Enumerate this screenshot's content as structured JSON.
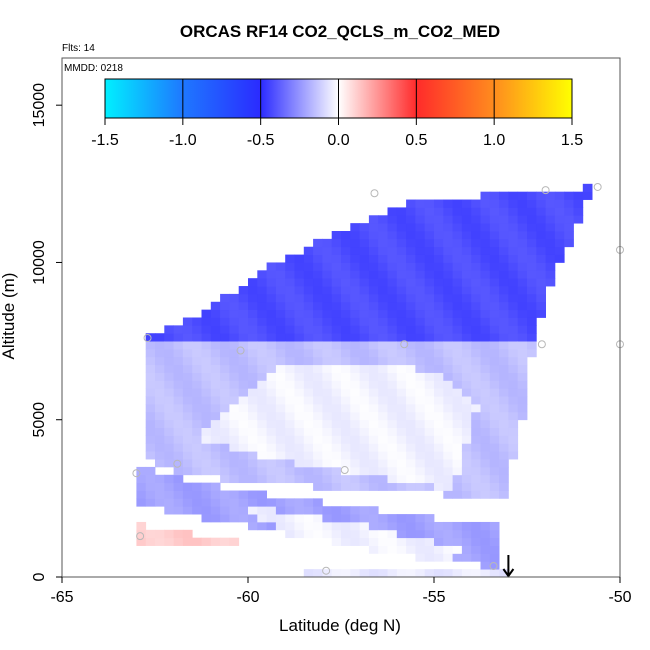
{
  "chart_data": {
    "type": "heatmap",
    "title": "ORCAS RF14 CO2_QCLS_m_CO2_MED",
    "xlabel": "Latitude (deg N)",
    "ylabel": "Altitude (m)",
    "xlim": [
      -65,
      -50
    ],
    "ylim": [
      0,
      16500
    ],
    "x_ticks": [
      {
        "value": -65,
        "label": "-65"
      },
      {
        "value": -60,
        "label": "-60"
      },
      {
        "value": -55,
        "label": "-55"
      },
      {
        "value": -50,
        "label": "-50"
      }
    ],
    "y_ticks": [
      {
        "value": 0,
        "label": "0"
      },
      {
        "value": 5000,
        "label": "5000"
      },
      {
        "value": 10000,
        "label": "10000"
      },
      {
        "value": 15000,
        "label": "15000"
      }
    ],
    "flights_note": "Flts: 14",
    "date_note": "MMDD: 0218",
    "colorbar": {
      "range": [
        -1.5,
        1.5
      ],
      "ticks": [
        {
          "value": -1.5,
          "label": "-1.5"
        },
        {
          "value": -1.0,
          "label": "-1.0"
        },
        {
          "value": -0.5,
          "label": "-0.5"
        },
        {
          "value": 0.0,
          "label": "0.0"
        },
        {
          "value": 0.5,
          "label": "0.5"
        },
        {
          "value": 1.0,
          "label": "1.0"
        },
        {
          "value": 1.5,
          "label": "1.5"
        }
      ],
      "colors": [
        [
          -1.5,
          "#00f0ff"
        ],
        [
          -1.0,
          "#1e78ff"
        ],
        [
          -0.5,
          "#2b2bff"
        ],
        [
          0.0,
          "#ffffff"
        ],
        [
          0.5,
          "#ff2b2b"
        ],
        [
          1.0,
          "#ff8c1e"
        ],
        [
          1.5,
          "#ffff00"
        ]
      ]
    },
    "regions": [
      {
        "name": "upper-layer",
        "value": -0.42,
        "polygon": [
          [
            -62.8,
            7600
          ],
          [
            -61.5,
            8200
          ],
          [
            -59.5,
            9800
          ],
          [
            -57.5,
            11000
          ],
          [
            -55.6,
            11900
          ],
          [
            -52.2,
            12300
          ],
          [
            -50.7,
            12400
          ],
          [
            -51.8,
            9500
          ],
          [
            -52.3,
            7500
          ],
          [
            -62.8,
            7500
          ]
        ]
      },
      {
        "name": "mid-layer",
        "value": -0.15,
        "polygon": [
          [
            -62.8,
            7500
          ],
          [
            -52.3,
            7500
          ],
          [
            -52.6,
            5000
          ],
          [
            -53.1,
            2500
          ],
          [
            -60,
            3000
          ],
          [
            -62.6,
            3500
          ],
          [
            -62.8,
            5500
          ]
        ]
      },
      {
        "name": "mid-core",
        "value": -0.03,
        "polygon": [
          [
            -61.5,
            4500
          ],
          [
            -59,
            6800
          ],
          [
            -55,
            6600
          ],
          [
            -53.8,
            5500
          ],
          [
            -54.5,
            2800
          ],
          [
            -59.5,
            3800
          ]
        ]
      },
      {
        "name": "lower-band",
        "value": -0.22,
        "polygon": [
          [
            -63,
            3500
          ],
          [
            -60.5,
            2800
          ],
          [
            -57.5,
            2300
          ],
          [
            -53.2,
            1600
          ],
          [
            -53.2,
            300
          ],
          [
            -56,
            700
          ],
          [
            -59.5,
            1500
          ],
          [
            -63,
            2300
          ]
        ]
      },
      {
        "name": "lower-core",
        "value": -0.03,
        "polygon": [
          [
            -60.5,
            2400
          ],
          [
            -57,
            1700
          ],
          [
            -54,
            800
          ],
          [
            -55,
            500
          ],
          [
            -59,
            1400
          ]
        ]
      },
      {
        "name": "surface-positive",
        "value": 0.12,
        "polygon": [
          [
            -63,
            1700
          ],
          [
            -61,
            1300
          ],
          [
            -59.8,
            1000
          ],
          [
            -63,
            1100
          ]
        ]
      },
      {
        "name": "surface-strip",
        "value": -0.05,
        "polygon": [
          [
            -58.5,
            300
          ],
          [
            -53.1,
            250
          ],
          [
            -53.1,
            0
          ],
          [
            -58.5,
            0
          ]
        ]
      }
    ],
    "sample_points": [
      {
        "lat": -62.7,
        "alt": 7600
      },
      {
        "lat": -60.2,
        "alt": 7200
      },
      {
        "lat": -56.6,
        "alt": 12200
      },
      {
        "lat": -52.0,
        "alt": 12300
      },
      {
        "lat": -50.6,
        "alt": 12400
      },
      {
        "lat": -52.1,
        "alt": 7400
      },
      {
        "lat": -55.8,
        "alt": 7400
      },
      {
        "lat": -50.0,
        "alt": 10400
      },
      {
        "lat": -50.0,
        "alt": 7400
      },
      {
        "lat": -61.9,
        "alt": 3600
      },
      {
        "lat": -57.4,
        "alt": 3400
      },
      {
        "lat": -63.0,
        "alt": 3300
      },
      {
        "lat": -62.9,
        "alt": 1300
      },
      {
        "lat": -57.9,
        "alt": 200
      },
      {
        "lat": -53.4,
        "alt": 350
      }
    ],
    "marker": {
      "lat": -53.0,
      "alt": 700,
      "symbol": "arrow-down"
    }
  }
}
